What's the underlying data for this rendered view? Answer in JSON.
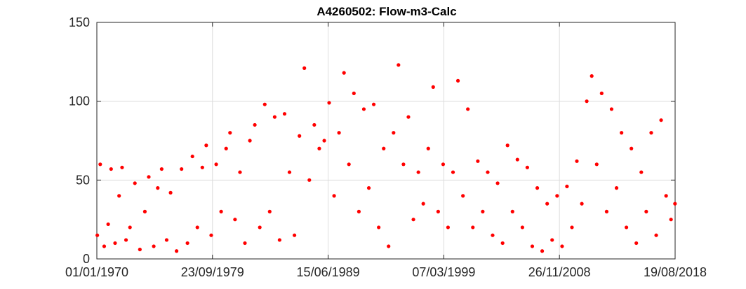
{
  "chart_data": {
    "type": "scatter",
    "title": "A4260502: Flow-m3-Calc",
    "xlabel": "",
    "ylabel": "",
    "x_axis_type": "date",
    "xlim": [
      "01/01/1970",
      "19/08/2018"
    ],
    "x_ticks": [
      "01/01/1970",
      "23/09/1979",
      "15/06/1989",
      "07/03/1999",
      "26/11/2008",
      "19/08/2018"
    ],
    "ylim": [
      0,
      150
    ],
    "y_ticks": [
      0,
      50,
      100,
      150
    ],
    "grid": true,
    "legend": "none",
    "marker_color": "#ff0000",
    "series": [
      {
        "values": [
          [
            "1970-01",
            15
          ],
          [
            "1970-04",
            60
          ],
          [
            "1970-08",
            8
          ],
          [
            "1970-12",
            22
          ],
          [
            "1971-03",
            57
          ],
          [
            "1971-07",
            10
          ],
          [
            "1971-11",
            40
          ],
          [
            "1972-02",
            58
          ],
          [
            "1972-06",
            12
          ],
          [
            "1972-10",
            20
          ],
          [
            "1973-03",
            48
          ],
          [
            "1973-08",
            6
          ],
          [
            "1974-01",
            30
          ],
          [
            "1974-05",
            52
          ],
          [
            "1974-10",
            8
          ],
          [
            "1975-02",
            45
          ],
          [
            "1975-06",
            57
          ],
          [
            "1975-11",
            12
          ],
          [
            "1976-03",
            42
          ],
          [
            "1976-09",
            5
          ],
          [
            "1977-02",
            57
          ],
          [
            "1977-08",
            10
          ],
          [
            "1978-01",
            65
          ],
          [
            "1978-06",
            20
          ],
          [
            "1978-11",
            58
          ],
          [
            "1979-03",
            72
          ],
          [
            "1979-08",
            15
          ],
          [
            "1980-01",
            60
          ],
          [
            "1980-06",
            30
          ],
          [
            "1980-11",
            70
          ],
          [
            "1981-03",
            80
          ],
          [
            "1981-08",
            25
          ],
          [
            "1982-01",
            55
          ],
          [
            "1982-06",
            10
          ],
          [
            "1982-11",
            75
          ],
          [
            "1983-04",
            85
          ],
          [
            "1983-09",
            20
          ],
          [
            "1984-02",
            98
          ],
          [
            "1984-07",
            30
          ],
          [
            "1984-12",
            90
          ],
          [
            "1985-05",
            12
          ],
          [
            "1985-10",
            92
          ],
          [
            "1986-03",
            55
          ],
          [
            "1986-08",
            15
          ],
          [
            "1987-01",
            78
          ],
          [
            "1987-06",
            121
          ],
          [
            "1987-11",
            50
          ],
          [
            "1988-04",
            85
          ],
          [
            "1988-09",
            70
          ],
          [
            "1989-02",
            75
          ],
          [
            "1989-07",
            99
          ],
          [
            "1989-12",
            40
          ],
          [
            "1990-05",
            80
          ],
          [
            "1990-10",
            118
          ],
          [
            "1991-03",
            60
          ],
          [
            "1991-08",
            105
          ],
          [
            "1992-01",
            30
          ],
          [
            "1992-06",
            95
          ],
          [
            "1992-11",
            45
          ],
          [
            "1993-04",
            98
          ],
          [
            "1993-09",
            20
          ],
          [
            "1994-02",
            70
          ],
          [
            "1994-07",
            8
          ],
          [
            "1994-12",
            80
          ],
          [
            "1995-05",
            123
          ],
          [
            "1995-10",
            60
          ],
          [
            "1996-03",
            90
          ],
          [
            "1996-08",
            25
          ],
          [
            "1997-01",
            55
          ],
          [
            "1997-06",
            35
          ],
          [
            "1997-11",
            70
          ],
          [
            "1998-04",
            109
          ],
          [
            "1998-09",
            30
          ],
          [
            "1999-02",
            60
          ],
          [
            "1999-07",
            20
          ],
          [
            "1999-12",
            55
          ],
          [
            "2000-05",
            113
          ],
          [
            "2000-10",
            40
          ],
          [
            "2001-03",
            95
          ],
          [
            "2001-08",
            20
          ],
          [
            "2002-01",
            62
          ],
          [
            "2002-06",
            30
          ],
          [
            "2002-11",
            55
          ],
          [
            "2003-04",
            15
          ],
          [
            "2003-09",
            48
          ],
          [
            "2004-02",
            10
          ],
          [
            "2004-07",
            72
          ],
          [
            "2004-12",
            30
          ],
          [
            "2005-05",
            63
          ],
          [
            "2005-10",
            20
          ],
          [
            "2006-03",
            58
          ],
          [
            "2006-08",
            8
          ],
          [
            "2007-01",
            45
          ],
          [
            "2007-06",
            5
          ],
          [
            "2007-11",
            35
          ],
          [
            "2008-04",
            12
          ],
          [
            "2008-09",
            40
          ],
          [
            "2009-02",
            8
          ],
          [
            "2009-07",
            46
          ],
          [
            "2009-12",
            20
          ],
          [
            "2010-05",
            62
          ],
          [
            "2010-10",
            35
          ],
          [
            "2011-03",
            100
          ],
          [
            "2011-08",
            116
          ],
          [
            "2012-01",
            60
          ],
          [
            "2012-06",
            105
          ],
          [
            "2012-11",
            30
          ],
          [
            "2013-04",
            95
          ],
          [
            "2013-09",
            45
          ],
          [
            "2014-02",
            80
          ],
          [
            "2014-07",
            20
          ],
          [
            "2014-12",
            70
          ],
          [
            "2015-05",
            10
          ],
          [
            "2015-10",
            55
          ],
          [
            "2016-03",
            30
          ],
          [
            "2016-08",
            80
          ],
          [
            "2017-01",
            15
          ],
          [
            "2017-06",
            88
          ],
          [
            "2017-11",
            40
          ],
          [
            "2018-04",
            25
          ],
          [
            "2018-08",
            35
          ]
        ]
      }
    ]
  }
}
